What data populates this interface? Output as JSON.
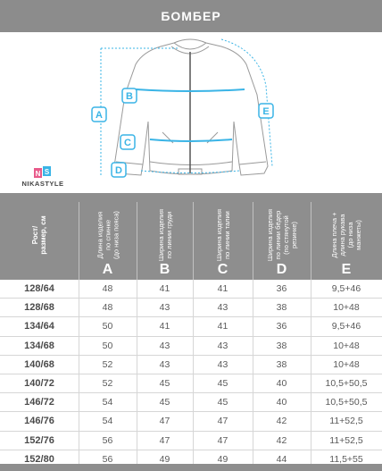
{
  "header": {
    "title": "БОМБЕР"
  },
  "brand": {
    "name": "NIKASTYLE"
  },
  "diagram": {
    "labels": [
      "A",
      "B",
      "C",
      "D",
      "E"
    ]
  },
  "table": {
    "columns": [
      {
        "label": "Рост/\nразмер, см",
        "letter": ""
      },
      {
        "label": "Длина изделия\nпо спинке\n(до низа пояса)",
        "letter": "A"
      },
      {
        "label": "Ширина изделия\nпо линии груди",
        "letter": "B"
      },
      {
        "label": "Ширина изделия\nпо линии талии",
        "letter": "C"
      },
      {
        "label": "Ширина изделия\nпо линии бёдер\n(по стянутой\nрезинке)",
        "letter": "D"
      },
      {
        "label": "Длина плеча +\nдлина рукава\n(до низа\nманжеты)",
        "letter": "E"
      }
    ],
    "rows": [
      [
        "128/64",
        "48",
        "41",
        "41",
        "36",
        "9,5+46"
      ],
      [
        "128/68",
        "48",
        "43",
        "43",
        "38",
        "10+48"
      ],
      [
        "134/64",
        "50",
        "41",
        "41",
        "36",
        "9,5+46"
      ],
      [
        "134/68",
        "50",
        "43",
        "43",
        "38",
        "10+48"
      ],
      [
        "140/68",
        "52",
        "43",
        "43",
        "38",
        "10+48"
      ],
      [
        "140/72",
        "52",
        "45",
        "45",
        "40",
        "10,5+50,5"
      ],
      [
        "146/72",
        "54",
        "45",
        "45",
        "40",
        "10,5+50,5"
      ],
      [
        "146/76",
        "54",
        "47",
        "47",
        "42",
        "11+52,5"
      ],
      [
        "152/76",
        "56",
        "47",
        "47",
        "42",
        "11+52,5"
      ],
      [
        "152/80",
        "56",
        "49",
        "49",
        "44",
        "11,5+55"
      ]
    ]
  },
  "colors": {
    "header_bg": "#8c8c8c",
    "accent": "#3ab4e6",
    "grid": "#d6d6d6"
  }
}
